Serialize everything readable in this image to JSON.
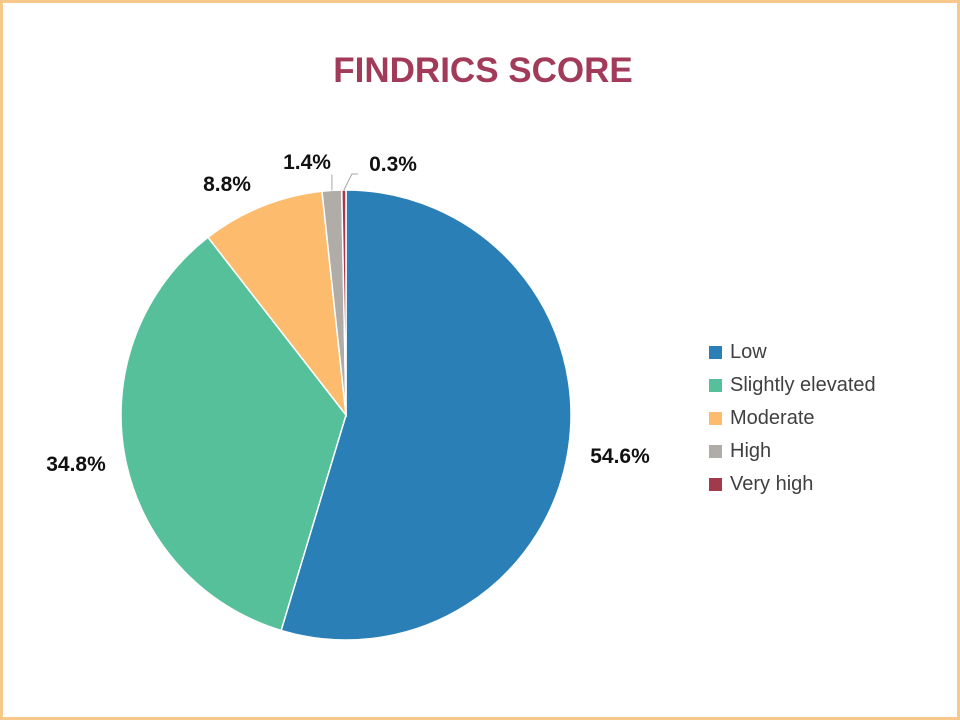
{
  "chart_data": {
    "type": "pie",
    "title": "FINDRICS SCORE",
    "title_color": "#a23a59",
    "categories": [
      "Low",
      "Slightly elevated",
      "Moderate",
      "High",
      "Very high"
    ],
    "values": [
      54.6,
      34.8,
      8.8,
      1.4,
      0.3
    ],
    "data_labels": [
      "54.6%",
      "34.8%",
      "8.8%",
      "1.4%",
      "0.3%"
    ],
    "colors": [
      "#2a80b6",
      "#55c09a",
      "#fdbb6e",
      "#b0aca8",
      "#a23a4c"
    ],
    "start_angle_deg": 0,
    "direction": "clockwise",
    "legend_position": "right"
  }
}
